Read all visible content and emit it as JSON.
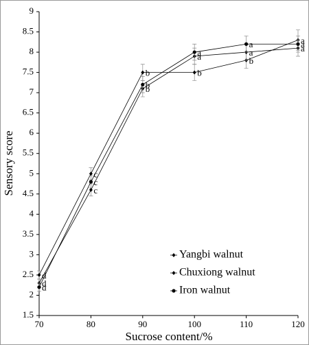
{
  "chart_data": {
    "type": "line",
    "x_label": "Sucrose content/%",
    "y_label": "Sensory score",
    "x": [
      70,
      80,
      90,
      100,
      110,
      120
    ],
    "xlim": [
      70,
      120
    ],
    "xticks": [
      70,
      80,
      90,
      100,
      110,
      120
    ],
    "ylim": [
      1.5,
      9
    ],
    "yticks": [
      1.5,
      2,
      2.5,
      3,
      3.5,
      4,
      4.5,
      5,
      5.5,
      6,
      6.5,
      7,
      7.5,
      8,
      8.5,
      9
    ],
    "grid": false,
    "legend": "lower right",
    "series": [
      {
        "name": "Yangbi walnut",
        "color": "#000000",
        "marker": "diamond",
        "values": [
          2.5,
          5.0,
          7.5,
          7.5,
          7.8,
          8.3
        ],
        "errors": [
          0.1,
          0.15,
          0.2,
          0.2,
          0.2,
          0.25
        ],
        "labels": [
          "d",
          "c",
          "b",
          "b",
          "b",
          "a"
        ]
      },
      {
        "name": "Chuxiong walnut",
        "color": "#000000",
        "marker": "diamond",
        "values": [
          2.3,
          4.6,
          7.1,
          7.9,
          8.0,
          8.1
        ],
        "errors": [
          0.1,
          0.15,
          0.2,
          0.2,
          0.2,
          0.2
        ],
        "labels": [
          "d",
          "c",
          "b",
          "a",
          "a",
          "a"
        ]
      },
      {
        "name": "Iron walnut",
        "color": "#000000",
        "marker": "circle",
        "values": [
          2.2,
          4.8,
          7.2,
          8.0,
          8.2,
          8.2
        ],
        "errors": [
          0.1,
          0.15,
          0.2,
          0.2,
          0.2,
          0.2
        ],
        "labels": [
          "d",
          "c",
          "b",
          "a",
          "a",
          "a"
        ]
      }
    ]
  }
}
